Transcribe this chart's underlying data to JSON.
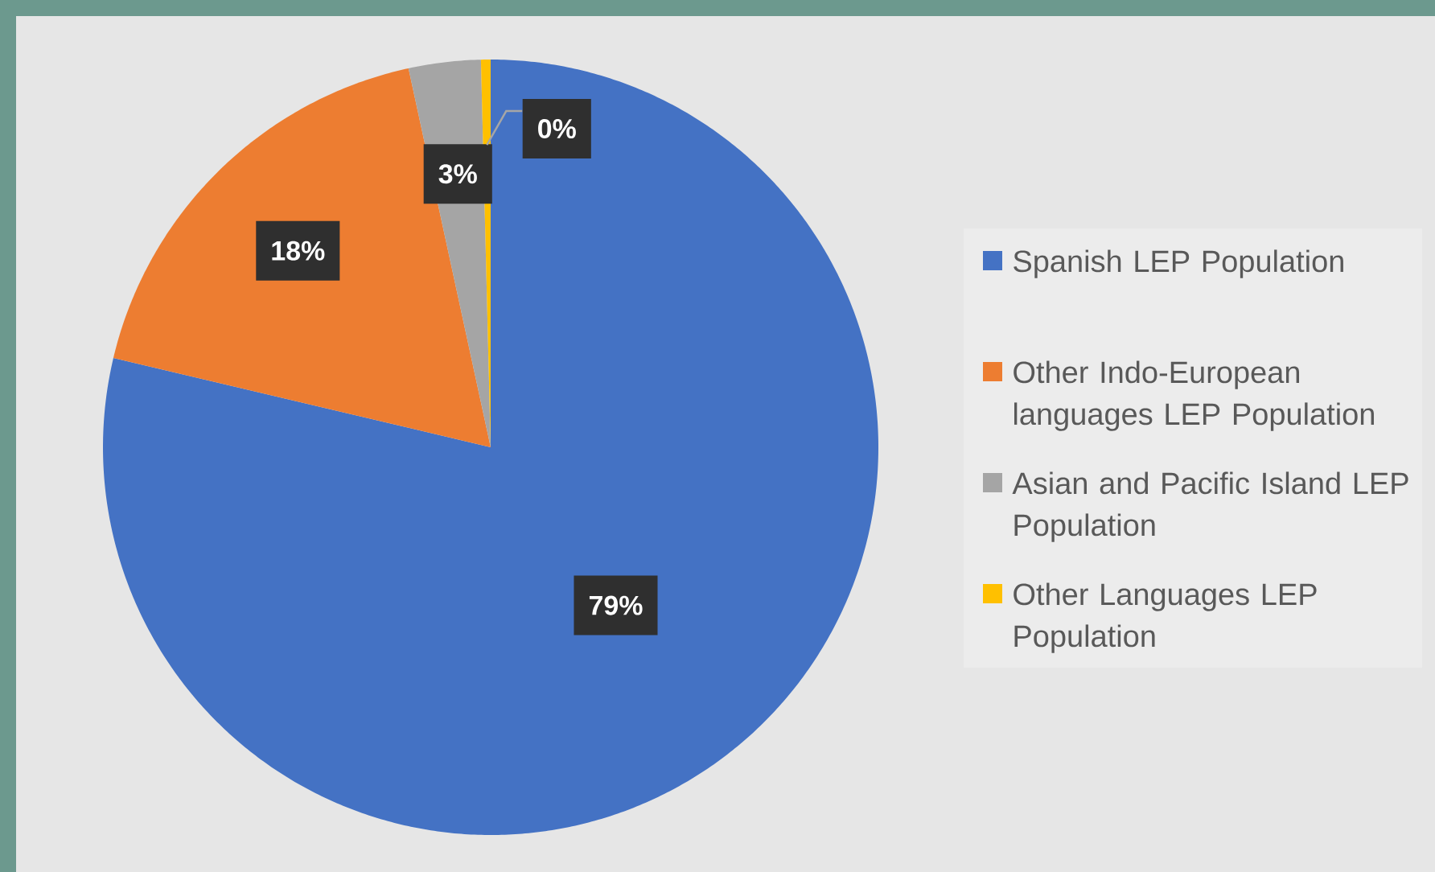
{
  "chart_data": {
    "type": "pie",
    "categories": [
      "Spanish LEP Population",
      "Other Indo-European languages LEP Population",
      "Asian and Pacific Island LEP Population",
      "Other Languages LEP Population"
    ],
    "values": [
      78.7,
      17.9,
      3.0,
      0.4
    ],
    "colors": [
      "#4472c4",
      "#ed7d31",
      "#a5a5a5",
      "#ffc000"
    ],
    "value_labels": [
      "79%",
      "18%",
      "3%",
      "0%"
    ],
    "legend": "right"
  }
}
